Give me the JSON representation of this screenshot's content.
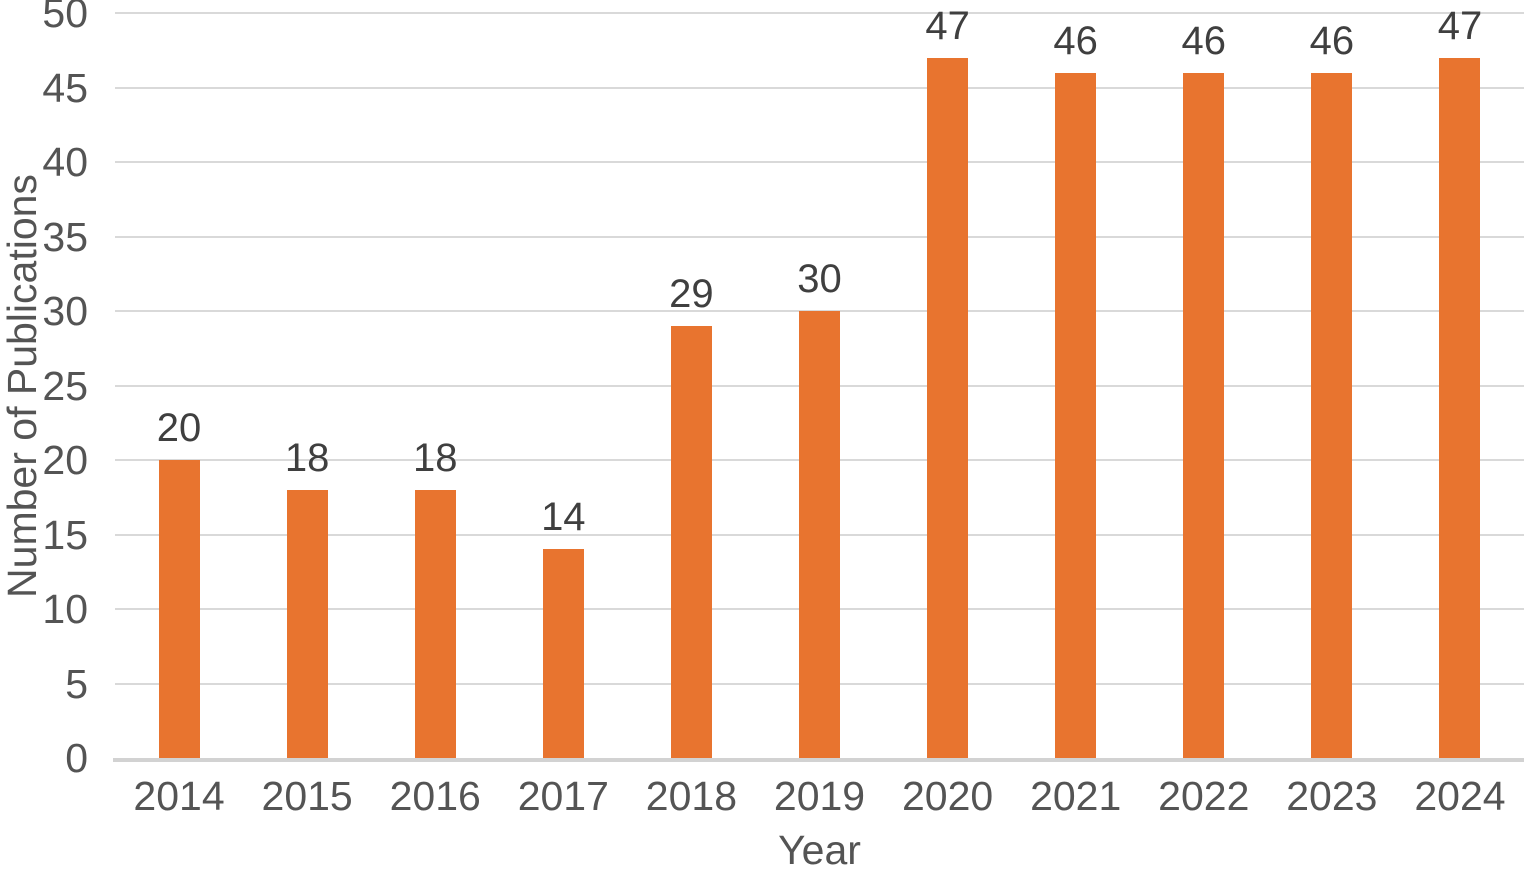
{
  "chart_data": {
    "type": "bar",
    "title": "",
    "categories": [
      "2014",
      "2015",
      "2016",
      "2017",
      "2018",
      "2019",
      "2020",
      "2021",
      "2022",
      "2023",
      "2024"
    ],
    "values": [
      20,
      18,
      18,
      14,
      29,
      30,
      47,
      46,
      46,
      46,
      47
    ],
    "data_labels": [
      "20",
      "18",
      "18",
      "14",
      "29",
      "30",
      "47",
      "46",
      "46",
      "46",
      "47"
    ],
    "xlabel": "Year",
    "ylabel": "Number of Publications",
    "ylim": [
      0,
      50
    ],
    "yticks": [
      0,
      5,
      10,
      15,
      20,
      25,
      30,
      35,
      40,
      45,
      50
    ],
    "grid": true,
    "legend": "none",
    "colors": {
      "bar": "#E8742F",
      "gridline": "#D9D9D9",
      "axis_line": "#D2D2D2",
      "tick_label": "#545454",
      "data_label": "#3F3F3F",
      "axis_title": "#545454"
    }
  }
}
